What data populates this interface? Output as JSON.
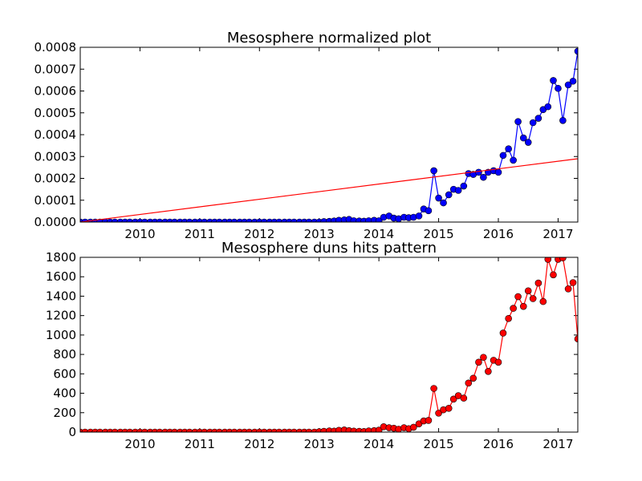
{
  "chart_data": [
    {
      "type": "line",
      "title": "Mesosphere normalized plot",
      "xlabel": "",
      "ylabel": "",
      "xlim": [
        2009.0,
        2017.33
      ],
      "ylim": [
        0,
        0.0008
      ],
      "x_ticks": [
        2010,
        2011,
        2012,
        2013,
        2014,
        2015,
        2016,
        2017
      ],
      "x_tick_labels": [
        "2010",
        "2011",
        "2012",
        "2013",
        "2014",
        "2015",
        "2016",
        "2017"
      ],
      "y_ticks": [
        0,
        0.0001,
        0.0002,
        0.0003,
        0.0004,
        0.0005,
        0.0006,
        0.0007,
        0.0008
      ],
      "y_tick_labels": [
        "0.0000",
        "0.0001",
        "0.0002",
        "0.0003",
        "0.0004",
        "0.0005",
        "0.0006",
        "0.0007",
        "0.0008"
      ],
      "grid": false,
      "series": [
        {
          "color": "#0000ff",
          "marker": "circle",
          "x": [
            2009.0,
            2009.08,
            2009.17,
            2009.25,
            2009.33,
            2009.42,
            2009.5,
            2009.58,
            2009.67,
            2009.75,
            2009.83,
            2009.92,
            2010.0,
            2010.08,
            2010.17,
            2010.25,
            2010.33,
            2010.42,
            2010.5,
            2010.58,
            2010.67,
            2010.75,
            2010.83,
            2010.92,
            2011.0,
            2011.08,
            2011.17,
            2011.25,
            2011.33,
            2011.42,
            2011.5,
            2011.58,
            2011.67,
            2011.75,
            2011.83,
            2011.92,
            2012.0,
            2012.08,
            2012.17,
            2012.25,
            2012.33,
            2012.42,
            2012.5,
            2012.58,
            2012.67,
            2012.75,
            2012.83,
            2012.92,
            2013.0,
            2013.08,
            2013.17,
            2013.25,
            2013.33,
            2013.42,
            2013.5,
            2013.58,
            2013.67,
            2013.75,
            2013.83,
            2013.92,
            2014.0,
            2014.08,
            2014.17,
            2014.25,
            2014.33,
            2014.42,
            2014.5,
            2014.58,
            2014.67,
            2014.75,
            2014.83,
            2014.92,
            2015.0,
            2015.08,
            2015.17,
            2015.25,
            2015.33,
            2015.42,
            2015.5,
            2015.58,
            2015.67,
            2015.75,
            2015.83,
            2015.92,
            2016.0,
            2016.08,
            2016.17,
            2016.25,
            2016.33,
            2016.42,
            2016.5,
            2016.58,
            2016.67,
            2016.75,
            2016.83,
            2016.92,
            2017.0,
            2017.08,
            2017.17,
            2017.25,
            2017.33
          ],
          "y": [
            0,
            0,
            0,
            0,
            0,
            0,
            0,
            0,
            0,
            0,
            0,
            0,
            0,
            0,
            0,
            0,
            0,
            0,
            0,
            0,
            0,
            0,
            0,
            0,
            0,
            0,
            0,
            0,
            0,
            0,
            0,
            0,
            0,
            0,
            0,
            0,
            0,
            0,
            0,
            0,
            0,
            0,
            0,
            0,
            0,
            0,
            0,
            0,
            0,
            2e-06,
            3e-06,
            5e-06,
            8e-06,
            1e-05,
            1.2e-05,
            6e-06,
            5e-06,
            4e-06,
            6e-06,
            8e-06,
            6e-06,
            2.2e-05,
            2.8e-05,
            1.8e-05,
            1.5e-05,
            2.2e-05,
            2e-05,
            2.2e-05,
            2.8e-05,
            6e-05,
            5.2e-05,
            0.000235,
            0.00011,
            8.8e-05,
            0.000125,
            0.00015,
            0.000145,
            0.000165,
            0.000222,
            0.000218,
            0.000228,
            0.000205,
            0.000228,
            0.000235,
            0.000228,
            0.000305,
            0.000335,
            0.000283,
            0.00046,
            0.000385,
            0.000365,
            0.000455,
            0.000475,
            0.000515,
            0.000528,
            0.000648,
            0.000612,
            0.000465,
            0.000628,
            0.000645,
            0.000782
          ]
        },
        {
          "color": "#ff0000",
          "marker": "none",
          "x": [
            2009.0,
            2017.33
          ],
          "y": [
            0,
            0.00029
          ]
        }
      ]
    },
    {
      "type": "line",
      "title": "Mesosphere duns hits pattern",
      "xlabel": "",
      "ylabel": "",
      "xlim": [
        2009.0,
        2017.33
      ],
      "ylim": [
        0,
        1800
      ],
      "x_ticks": [
        2010,
        2011,
        2012,
        2013,
        2014,
        2015,
        2016,
        2017
      ],
      "x_tick_labels": [
        "2010",
        "2011",
        "2012",
        "2013",
        "2014",
        "2015",
        "2016",
        "2017"
      ],
      "y_ticks": [
        0,
        200,
        400,
        600,
        800,
        1000,
        1200,
        1400,
        1600,
        1800
      ],
      "y_tick_labels": [
        "0",
        "200",
        "400",
        "600",
        "800",
        "1000",
        "1200",
        "1400",
        "1600",
        "1800"
      ],
      "grid": false,
      "series": [
        {
          "color": "#ff0000",
          "marker": "circle",
          "x": [
            2009.0,
            2009.08,
            2009.17,
            2009.25,
            2009.33,
            2009.42,
            2009.5,
            2009.58,
            2009.67,
            2009.75,
            2009.83,
            2009.92,
            2010.0,
            2010.08,
            2010.17,
            2010.25,
            2010.33,
            2010.42,
            2010.5,
            2010.58,
            2010.67,
            2010.75,
            2010.83,
            2010.92,
            2011.0,
            2011.08,
            2011.17,
            2011.25,
            2011.33,
            2011.42,
            2011.5,
            2011.58,
            2011.67,
            2011.75,
            2011.83,
            2011.92,
            2012.0,
            2012.08,
            2012.17,
            2012.25,
            2012.33,
            2012.42,
            2012.5,
            2012.58,
            2012.67,
            2012.75,
            2012.83,
            2012.92,
            2013.0,
            2013.08,
            2013.17,
            2013.25,
            2013.33,
            2013.42,
            2013.5,
            2013.58,
            2013.67,
            2013.75,
            2013.83,
            2013.92,
            2014.0,
            2014.08,
            2014.17,
            2014.25,
            2014.33,
            2014.42,
            2014.5,
            2014.58,
            2014.67,
            2014.75,
            2014.83,
            2014.92,
            2015.0,
            2015.08,
            2015.17,
            2015.25,
            2015.33,
            2015.42,
            2015.5,
            2015.58,
            2015.67,
            2015.75,
            2015.83,
            2015.92,
            2016.0,
            2016.08,
            2016.17,
            2016.25,
            2016.33,
            2016.42,
            2016.5,
            2016.58,
            2016.67,
            2016.75,
            2016.83,
            2016.92,
            2017.0,
            2017.08,
            2017.17,
            2017.25,
            2017.33
          ],
          "y": [
            0,
            0,
            0,
            0,
            0,
            0,
            0,
            0,
            0,
            0,
            0,
            0,
            0,
            0,
            0,
            0,
            0,
            0,
            0,
            0,
            0,
            0,
            0,
            0,
            0,
            0,
            0,
            0,
            0,
            0,
            0,
            0,
            0,
            0,
            0,
            0,
            0,
            0,
            0,
            0,
            0,
            0,
            0,
            0,
            0,
            0,
            0,
            0,
            4,
            8,
            12,
            10,
            18,
            22,
            15,
            10,
            8,
            6,
            12,
            15,
            20,
            55,
            45,
            40,
            30,
            45,
            35,
            50,
            85,
            115,
            120,
            450,
            195,
            230,
            245,
            340,
            375,
            350,
            505,
            555,
            720,
            770,
            625,
            740,
            720,
            1020,
            1170,
            1275,
            1395,
            1295,
            1455,
            1375,
            1535,
            1345,
            1780,
            1620,
            1780,
            1795,
            1475,
            1540,
            960
          ]
        }
      ]
    }
  ]
}
